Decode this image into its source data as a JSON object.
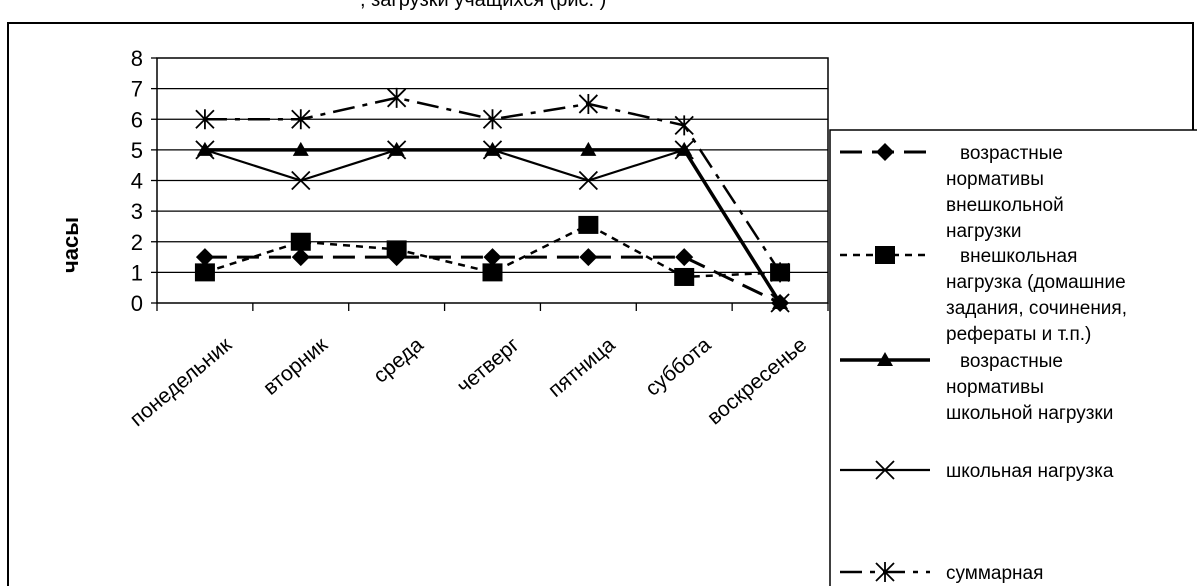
{
  "header": {
    "fragment": ", загрузки учащихся (рис. )"
  },
  "chart_data": {
    "type": "line",
    "ylabel": "часы",
    "xlabel": "",
    "ylim": [
      0,
      8
    ],
    "yticks": [
      0,
      1,
      2,
      3,
      4,
      5,
      6,
      7,
      8
    ],
    "grid": true,
    "legend_position": "right",
    "categories": [
      "понедельник",
      "вторник",
      "среда",
      "четверг",
      "пятница",
      "суббота",
      "воскресенье"
    ],
    "series": [
      {
        "key": "age_norm_extra",
        "legend_lines": [
          "возрастные",
          "нормативы",
          "внешкольной",
          "нагрузки"
        ],
        "marker": "diamond",
        "dash": "long-dash",
        "values": [
          1.5,
          1.5,
          1.5,
          1.5,
          1.5,
          1.5,
          0
        ]
      },
      {
        "key": "extra_load",
        "legend_lines": [
          "внешкольная",
          "нагрузка (домашние",
          "задания, сочинения,",
          "рефераты и т.п.)"
        ],
        "marker": "square",
        "dash": "short-dash",
        "values": [
          1,
          2,
          1.75,
          1,
          2.55,
          0.85,
          1
        ]
      },
      {
        "key": "age_norm_school",
        "legend_lines": [
          "возрастные",
          "нормативы",
          "школьной нагрузки"
        ],
        "marker": "triangle",
        "dash": "solid-thick",
        "values": [
          5,
          5,
          5,
          5,
          5,
          5,
          0
        ]
      },
      {
        "key": "school_load",
        "legend_lines": [
          "школьная нагрузка"
        ],
        "marker": "x",
        "dash": "solid",
        "values": [
          5,
          4,
          5,
          5,
          4,
          5,
          0
        ]
      },
      {
        "key": "total",
        "legend_lines": [
          "суммарная"
        ],
        "marker": "star",
        "dash": "dash-dot",
        "values": [
          6,
          6,
          6.7,
          6,
          6.5,
          5.8,
          1
        ]
      }
    ]
  }
}
